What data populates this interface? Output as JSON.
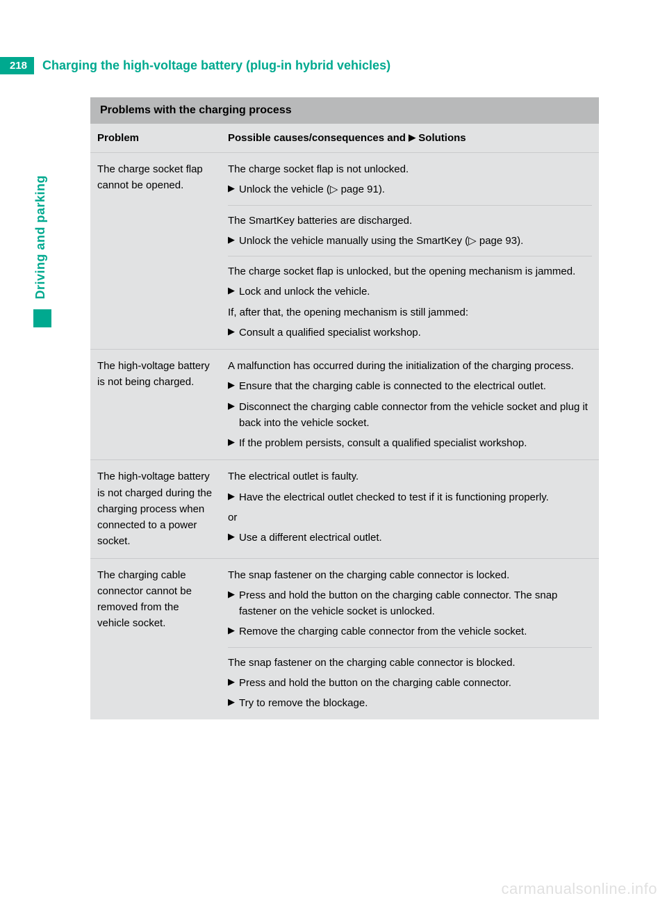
{
  "page_number": "218",
  "header_title": "Charging the high-voltage battery (plug-in hybrid vehicles)",
  "side_tab": "Driving and parking",
  "section_title": "Problems with the charging process",
  "columns": {
    "problem": "Problem",
    "solutions_prefix": "Possible causes/consequences and ",
    "solutions_marker": "▶",
    "solutions_suffix": " Solutions"
  },
  "rows": [
    {
      "problem": "The charge socket flap cannot be opened.",
      "blocks": [
        {
          "cause": "The charge socket flap is not unlocked.",
          "steps": [
            "Unlock the vehicle (▷ page 91)."
          ]
        },
        {
          "cause": "The SmartKey batteries are discharged.",
          "steps": [
            "Unlock the vehicle manually using the SmartKey (▷ page 93)."
          ]
        },
        {
          "cause": "The charge socket flap is unlocked, but the opening mechanism is jammed.",
          "steps": [
            "Lock and unlock the vehicle."
          ],
          "after": "If, after that, the opening mechanism is still jammed:",
          "after_steps": [
            "Consult a qualified specialist workshop."
          ]
        }
      ]
    },
    {
      "problem": "The high-voltage battery is not being charged.",
      "blocks": [
        {
          "cause": "A malfunction has occurred during the initialization of the charging process.",
          "steps": [
            "Ensure that the charging cable is connected to the electrical outlet.",
            "Disconnect the charging cable connector from the vehicle socket and plug it back into the vehicle socket.",
            "If the problem persists, consult a qualified specialist workshop."
          ]
        }
      ]
    },
    {
      "problem": "The high-voltage battery is not charged during the charging process when connected to a power socket.",
      "blocks": [
        {
          "cause": "The electrical outlet is faulty.",
          "steps": [
            "Have the electrical outlet checked to test if it is functioning properly."
          ],
          "after": "or",
          "after_steps": [
            "Use a different electrical outlet."
          ]
        }
      ]
    },
    {
      "problem": "The charging cable connector cannot be removed from the vehicle socket.",
      "blocks": [
        {
          "cause": "The snap fastener on the charging cable connector is locked.",
          "steps": [
            "Press and hold the button on the charging cable connector. The snap fastener on the vehicle socket is unlocked.",
            "Remove the charging cable connector from the vehicle socket."
          ]
        },
        {
          "cause": "The snap fastener on the charging cable connector is blocked.",
          "steps": [
            "Press and hold the button on the charging cable connector.",
            "Try to remove the blockage."
          ]
        }
      ]
    }
  ],
  "watermark": "carmanualsonline.info",
  "colors": {
    "accent": "#00a98f",
    "table_bg": "#e1e2e3",
    "title_bar_bg": "#b8b9ba",
    "border": "#c9cacc"
  }
}
